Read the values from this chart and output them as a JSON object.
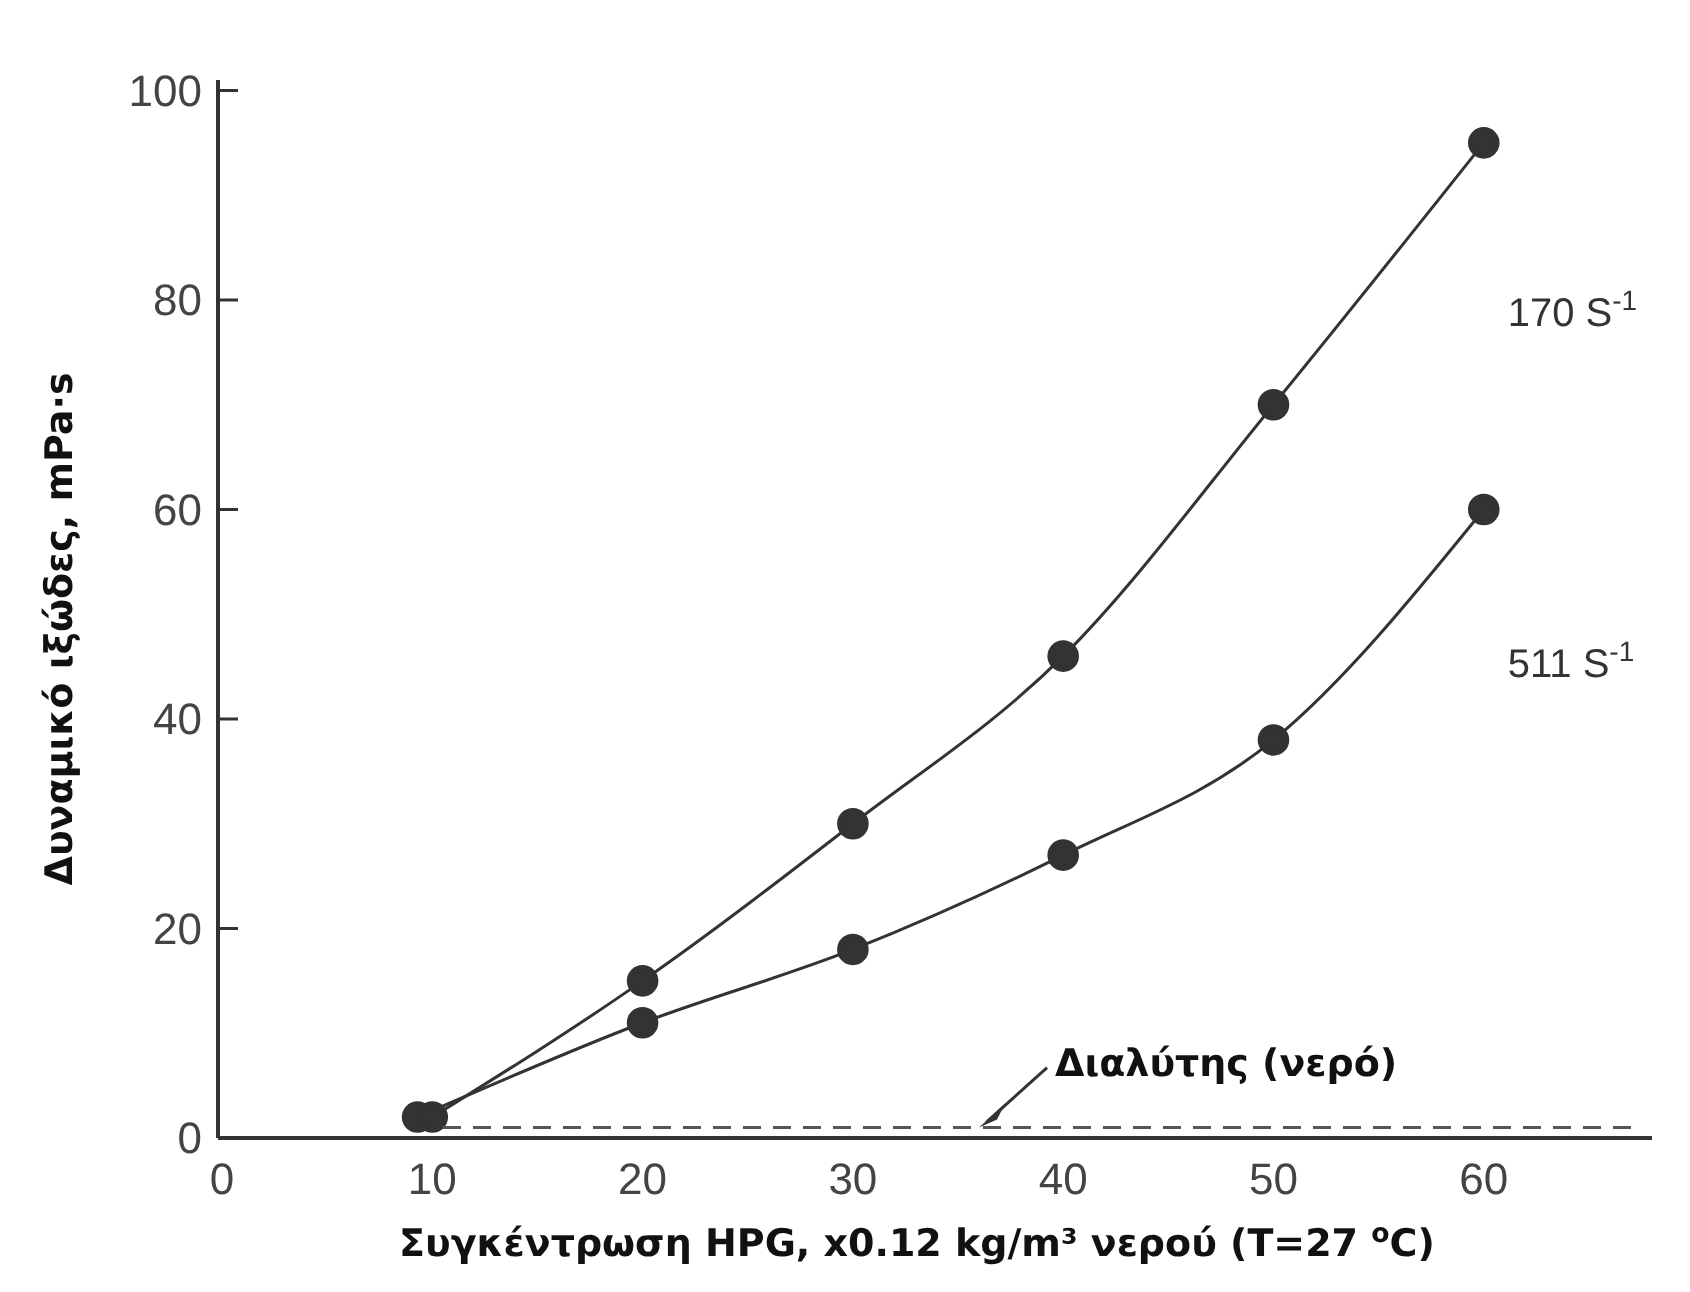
{
  "chart_data": {
    "type": "line",
    "xlabel": "Συγκέντρωση HPG, x0.12 kg/m³ νερού (T=27 $^{o}$C)",
    "ylabel": "Δυναμικό ιξώδες, mPa·s",
    "xlim": [
      0,
      68
    ],
    "ylim": [
      0,
      101
    ],
    "xticks": [
      0,
      10,
      20,
      30,
      40,
      50,
      60
    ],
    "yticks": [
      0,
      20,
      40,
      60,
      80,
      100
    ],
    "grid": false,
    "series": [
      {
        "name": "511 S$^{-1}$",
        "color": "#333333",
        "marker": "circle",
        "x": [
          9.3,
          20,
          30,
          40,
          50,
          60
        ],
        "values": [
          2,
          11,
          18,
          27,
          38,
          60
        ]
      },
      {
        "name": "170 S$^{-1}$",
        "color": "#333333",
        "marker": "circle",
        "x": [
          10,
          20,
          30,
          40,
          50,
          60
        ],
        "values": [
          2,
          15,
          30,
          46,
          70,
          95
        ]
      },
      {
        "color": "#555555",
        "marker": "none",
        "line_style": "dashed",
        "x": [
          10,
          67
        ],
        "values": [
          1,
          1
        ]
      }
    ],
    "annotations": [
      {
        "text": "Διαλύτης (νερό)",
        "x": 36,
        "y": 1
      }
    ]
  }
}
